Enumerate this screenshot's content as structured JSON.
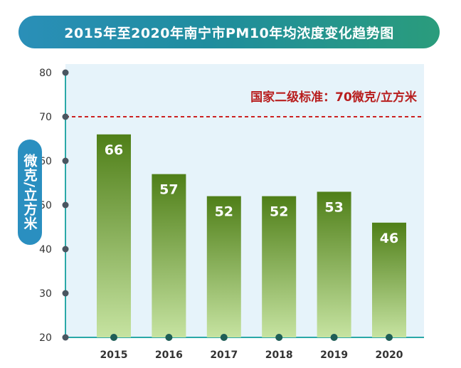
{
  "colors": {
    "banner_start": "#2a8fb8",
    "banner_end": "#2a9c7c",
    "plot_bg": "#e6f3fa",
    "bar_top": "#4f7f18",
    "bar_bottom": "#c6e3a1",
    "reference_line": "#cc2222",
    "axis_line": "#2aa8a8",
    "tick_dot": "#4a5560",
    "year_dot": "#1f5e57"
  },
  "chart_data": {
    "type": "bar",
    "title": "2015年至2020年南宁市PM10年均浓度变化趋势图",
    "ylabel": "微克/立方米",
    "xlabel": "",
    "categories": [
      "2015",
      "2016",
      "2017",
      "2018",
      "2019",
      "2020"
    ],
    "values": [
      66,
      57,
      52,
      52,
      53,
      46
    ],
    "ylim": [
      20,
      80
    ],
    "yticks": [
      20,
      30,
      40,
      50,
      60,
      70,
      80
    ],
    "grid": false,
    "reference_line": {
      "value": 70,
      "label": "国家二级标准：70微克/立方米",
      "style": "dashed"
    }
  }
}
